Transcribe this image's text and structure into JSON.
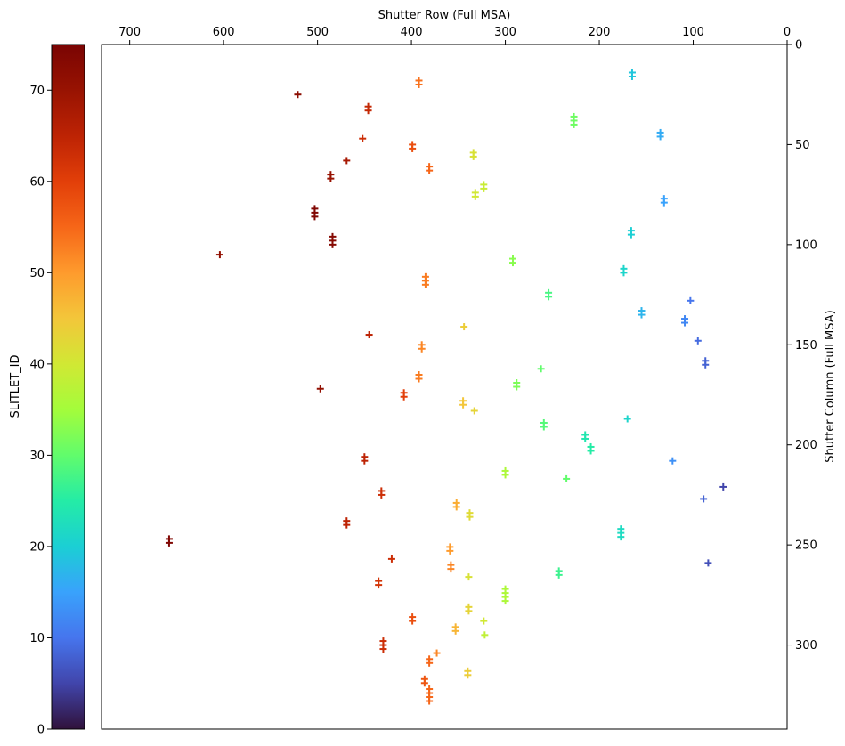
{
  "chart_data": {
    "type": "scatter",
    "marker": "plus",
    "x_axis": {
      "label": "Shutter Row (Full MSA)",
      "position": "top",
      "inverted": true,
      "range": [
        730,
        0
      ],
      "ticks": [
        700,
        600,
        500,
        400,
        300,
        200,
        100,
        0
      ]
    },
    "y_axis": {
      "label": "Shutter Column (Full MSA)",
      "position": "right",
      "inverted": true,
      "range": [
        0,
        342
      ],
      "ticks": [
        0,
        50,
        100,
        150,
        200,
        250,
        300
      ]
    },
    "colorbar": {
      "label": "SLITLET_ID",
      "colormap": "turbo",
      "range": [
        0,
        75
      ],
      "ticks": [
        0,
        10,
        20,
        30,
        40,
        50,
        60,
        70
      ]
    },
    "points": [
      {
        "row": 165,
        "col": 14,
        "id": 19
      },
      {
        "row": 165,
        "col": 16,
        "id": 19
      },
      {
        "row": 392,
        "col": 18,
        "id": 54
      },
      {
        "row": 392,
        "col": 20,
        "id": 54
      },
      {
        "row": 521,
        "col": 25,
        "id": 72
      },
      {
        "row": 446,
        "col": 31,
        "id": 64
      },
      {
        "row": 446,
        "col": 33,
        "id": 64
      },
      {
        "row": 227,
        "col": 36,
        "id": 31
      },
      {
        "row": 227,
        "col": 38,
        "id": 31
      },
      {
        "row": 227,
        "col": 40,
        "id": 31
      },
      {
        "row": 135,
        "col": 44,
        "id": 16
      },
      {
        "row": 135,
        "col": 46,
        "id": 16
      },
      {
        "row": 452,
        "col": 47,
        "id": 63
      },
      {
        "row": 399,
        "col": 50,
        "id": 58
      },
      {
        "row": 399,
        "col": 52,
        "id": 58
      },
      {
        "row": 334,
        "col": 54,
        "id": 41
      },
      {
        "row": 334,
        "col": 56,
        "id": 41
      },
      {
        "row": 469,
        "col": 58,
        "id": 68
      },
      {
        "row": 381,
        "col": 61,
        "id": 55
      },
      {
        "row": 381,
        "col": 63,
        "id": 55
      },
      {
        "row": 486,
        "col": 65,
        "id": 70
      },
      {
        "row": 486,
        "col": 67,
        "id": 70
      },
      {
        "row": 323,
        "col": 70,
        "id": 39
      },
      {
        "row": 323,
        "col": 72,
        "id": 39
      },
      {
        "row": 332,
        "col": 74,
        "id": 40
      },
      {
        "row": 332,
        "col": 76,
        "id": 40
      },
      {
        "row": 131,
        "col": 77,
        "id": 15
      },
      {
        "row": 131,
        "col": 79,
        "id": 15
      },
      {
        "row": 503,
        "col": 82,
        "id": 74
      },
      {
        "row": 503,
        "col": 84,
        "id": 74
      },
      {
        "row": 503,
        "col": 86,
        "id": 74
      },
      {
        "row": 166,
        "col": 93,
        "id": 20
      },
      {
        "row": 166,
        "col": 95,
        "id": 20
      },
      {
        "row": 484,
        "col": 96,
        "id": 73
      },
      {
        "row": 484,
        "col": 98,
        "id": 73
      },
      {
        "row": 484,
        "col": 100,
        "id": 73
      },
      {
        "row": 604,
        "col": 105,
        "id": 71
      },
      {
        "row": 292,
        "col": 107,
        "id": 33
      },
      {
        "row": 292,
        "col": 109,
        "id": 33
      },
      {
        "row": 174,
        "col": 112,
        "id": 21
      },
      {
        "row": 174,
        "col": 114,
        "id": 21
      },
      {
        "row": 385,
        "col": 116,
        "id": 53
      },
      {
        "row": 385,
        "col": 118,
        "id": 53
      },
      {
        "row": 385,
        "col": 120,
        "id": 53
      },
      {
        "row": 254,
        "col": 124,
        "id": 28
      },
      {
        "row": 254,
        "col": 126,
        "id": 28
      },
      {
        "row": 103,
        "col": 128,
        "id": 10
      },
      {
        "row": 155,
        "col": 133,
        "id": 17
      },
      {
        "row": 155,
        "col": 135,
        "id": 17
      },
      {
        "row": 109,
        "col": 137,
        "id": 12
      },
      {
        "row": 109,
        "col": 139,
        "id": 12
      },
      {
        "row": 344,
        "col": 141,
        "id": 44
      },
      {
        "row": 445,
        "col": 145,
        "id": 65
      },
      {
        "row": 95,
        "col": 148,
        "id": 9
      },
      {
        "row": 389,
        "col": 150,
        "id": 52
      },
      {
        "row": 389,
        "col": 152,
        "id": 52
      },
      {
        "row": 87,
        "col": 158,
        "id": 8
      },
      {
        "row": 87,
        "col": 160,
        "id": 8
      },
      {
        "row": 262,
        "col": 162,
        "id": 30
      },
      {
        "row": 392,
        "col": 165,
        "id": 53
      },
      {
        "row": 392,
        "col": 167,
        "id": 53
      },
      {
        "row": 288,
        "col": 169,
        "id": 32
      },
      {
        "row": 288,
        "col": 171,
        "id": 32
      },
      {
        "row": 497,
        "col": 172,
        "id": 71
      },
      {
        "row": 408,
        "col": 174,
        "id": 60
      },
      {
        "row": 408,
        "col": 176,
        "id": 60
      },
      {
        "row": 345,
        "col": 178,
        "id": 45
      },
      {
        "row": 345,
        "col": 180,
        "id": 45
      },
      {
        "row": 333,
        "col": 183,
        "id": 43
      },
      {
        "row": 170,
        "col": 187,
        "id": 21
      },
      {
        "row": 259,
        "col": 189,
        "id": 29
      },
      {
        "row": 259,
        "col": 191,
        "id": 29
      },
      {
        "row": 215,
        "col": 195,
        "id": 24
      },
      {
        "row": 215,
        "col": 197,
        "id": 24
      },
      {
        "row": 209,
        "col": 201,
        "id": 25
      },
      {
        "row": 209,
        "col": 203,
        "id": 25
      },
      {
        "row": 450,
        "col": 206,
        "id": 65
      },
      {
        "row": 450,
        "col": 208,
        "id": 65
      },
      {
        "row": 122,
        "col": 208,
        "id": 13
      },
      {
        "row": 300,
        "col": 213,
        "id": 36
      },
      {
        "row": 300,
        "col": 215,
        "id": 36
      },
      {
        "row": 235,
        "col": 217,
        "id": 30
      },
      {
        "row": 68,
        "col": 221,
        "id": 5
      },
      {
        "row": 432,
        "col": 223,
        "id": 63
      },
      {
        "row": 432,
        "col": 225,
        "id": 63
      },
      {
        "row": 89,
        "col": 227,
        "id": 8
      },
      {
        "row": 352,
        "col": 229,
        "id": 48
      },
      {
        "row": 352,
        "col": 231,
        "id": 48
      },
      {
        "row": 338,
        "col": 234,
        "id": 42
      },
      {
        "row": 338,
        "col": 236,
        "id": 42
      },
      {
        "row": 469,
        "col": 238,
        "id": 65
      },
      {
        "row": 469,
        "col": 240,
        "id": 65
      },
      {
        "row": 177,
        "col": 242,
        "id": 22
      },
      {
        "row": 177,
        "col": 244,
        "id": 22
      },
      {
        "row": 177,
        "col": 246,
        "id": 22
      },
      {
        "row": 658,
        "col": 247,
        "id": 74
      },
      {
        "row": 658,
        "col": 249,
        "id": 74
      },
      {
        "row": 359,
        "col": 251,
        "id": 50
      },
      {
        "row": 359,
        "col": 253,
        "id": 50
      },
      {
        "row": 421,
        "col": 257,
        "id": 63
      },
      {
        "row": 84,
        "col": 259,
        "id": 6
      },
      {
        "row": 358,
        "col": 260,
        "id": 52
      },
      {
        "row": 358,
        "col": 262,
        "id": 52
      },
      {
        "row": 243,
        "col": 263,
        "id": 27
      },
      {
        "row": 243,
        "col": 265,
        "id": 27
      },
      {
        "row": 339,
        "col": 266,
        "id": 41
      },
      {
        "row": 435,
        "col": 268,
        "id": 62
      },
      {
        "row": 435,
        "col": 270,
        "id": 62
      },
      {
        "row": 300,
        "col": 272,
        "id": 36
      },
      {
        "row": 300,
        "col": 274,
        "id": 36
      },
      {
        "row": 300,
        "col": 276,
        "id": 36
      },
      {
        "row": 300,
        "col": 278,
        "id": 36
      },
      {
        "row": 339,
        "col": 281,
        "id": 43
      },
      {
        "row": 339,
        "col": 283,
        "id": 43
      },
      {
        "row": 399,
        "col": 286,
        "id": 58
      },
      {
        "row": 399,
        "col": 288,
        "id": 58
      },
      {
        "row": 323,
        "col": 288,
        "id": 40
      },
      {
        "row": 353,
        "col": 291,
        "id": 47
      },
      {
        "row": 353,
        "col": 293,
        "id": 47
      },
      {
        "row": 322,
        "col": 295,
        "id": 38
      },
      {
        "row": 430,
        "col": 298,
        "id": 63
      },
      {
        "row": 430,
        "col": 300,
        "id": 63
      },
      {
        "row": 430,
        "col": 302,
        "id": 63
      },
      {
        "row": 373,
        "col": 304,
        "id": 52
      },
      {
        "row": 381,
        "col": 307,
        "id": 55
      },
      {
        "row": 381,
        "col": 309,
        "id": 55
      },
      {
        "row": 340,
        "col": 313,
        "id": 44
      },
      {
        "row": 340,
        "col": 315,
        "id": 44
      },
      {
        "row": 386,
        "col": 317,
        "id": 57
      },
      {
        "row": 386,
        "col": 319,
        "id": 57
      },
      {
        "row": 381,
        "col": 322,
        "id": 55
      },
      {
        "row": 381,
        "col": 324,
        "id": 55
      },
      {
        "row": 381,
        "col": 326,
        "id": 55
      },
      {
        "row": 381,
        "col": 328,
        "id": 55
      }
    ]
  }
}
